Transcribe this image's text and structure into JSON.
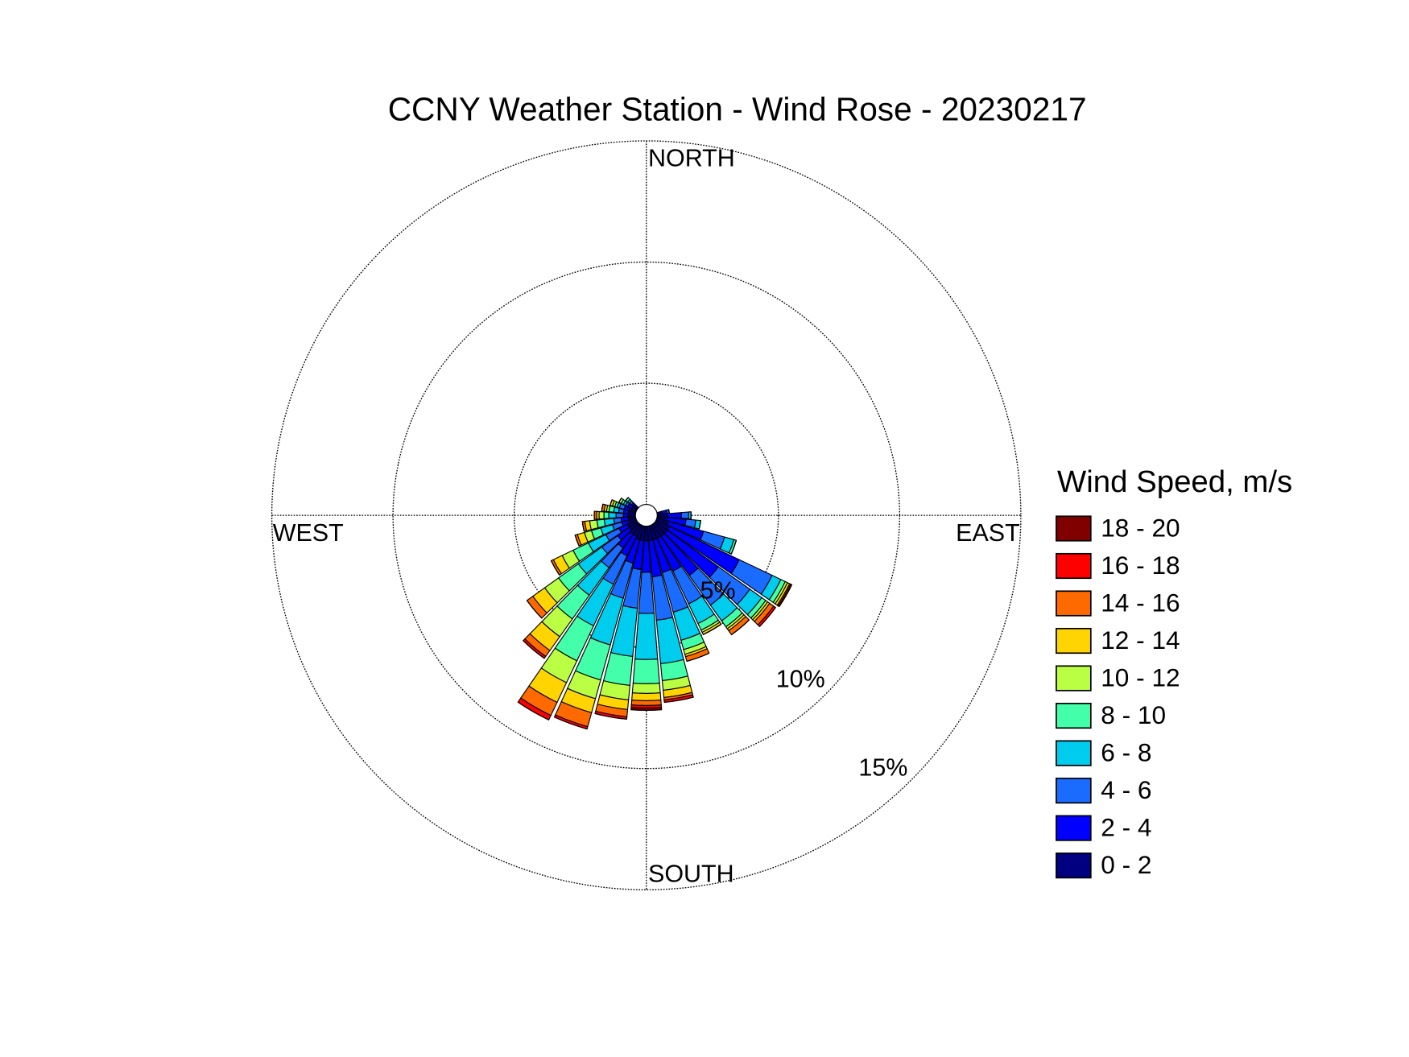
{
  "chart_data": {
    "type": "windrose",
    "title": "CCNY Weather Station - Wind Rose - 20230217",
    "direction_labels": {
      "north": "NORTH",
      "east": "EAST",
      "south": "SOUTH",
      "west": "WEST"
    },
    "legend_title": "Wind Speed, m/s",
    "x": [
      80,
      90,
      100,
      110,
      120,
      130,
      140,
      150,
      160,
      170,
      180,
      190,
      200,
      210,
      220,
      230,
      240,
      250,
      260,
      270,
      280,
      290,
      300,
      310
    ],
    "rlim": [
      0,
      15
    ],
    "rticks": [
      {
        "value": 5,
        "label": "5%"
      },
      {
        "value": 10,
        "label": "10%"
      },
      {
        "value": 15,
        "label": "15%"
      }
    ],
    "grid": true,
    "series": [
      {
        "name": "0 - 2",
        "color": "#000080",
        "values": [
          0.2,
          0.4,
          0.4,
          0.5,
          0.6,
          0.6,
          0.6,
          0.6,
          0.6,
          0.6,
          0.6,
          0.6,
          0.6,
          0.5,
          0.5,
          0.4,
          0.4,
          0.3,
          0.3,
          0.3,
          0.3,
          0.3,
          0.2,
          0.2
        ]
      },
      {
        "name": "2 - 4",
        "color": "#0000ff",
        "values": [
          0.2,
          0.6,
          0.8,
          1.5,
          3.2,
          2.6,
          2.0,
          1.5,
          1.4,
          1.5,
          1.3,
          1.2,
          1.0,
          0.9,
          0.7,
          0.6,
          0.4,
          0.3,
          0.3,
          0.2,
          0.2,
          0.2,
          0.2,
          0.1
        ]
      },
      {
        "name": "4 - 6",
        "color": "#1a6bff",
        "values": [
          0.1,
          0.3,
          0.4,
          0.9,
          1.5,
          1.6,
          1.5,
          1.5,
          1.7,
          1.8,
          1.7,
          1.6,
          1.5,
          1.3,
          1.0,
          0.8,
          0.6,
          0.4,
          0.3,
          0.3,
          0.2,
          0.2,
          0.1,
          0.1
        ]
      },
      {
        "name": "6 - 8",
        "color": "#00ccee",
        "values": [
          0,
          0.1,
          0.2,
          0.4,
          0.4,
          0.6,
          0.8,
          0.9,
          1.2,
          1.8,
          1.9,
          2.0,
          2.0,
          1.9,
          1.4,
          1.2,
          0.8,
          0.5,
          0.4,
          0.3,
          0.2,
          0.1,
          0.1,
          0.1
        ]
      },
      {
        "name": "8 - 10",
        "color": "#44ffaa",
        "values": [
          0,
          0,
          0,
          0.1,
          0.2,
          0.2,
          0.3,
          0.3,
          0.4,
          0.7,
          1.0,
          1.2,
          1.5,
          1.6,
          1.2,
          1.0,
          0.7,
          0.4,
          0.3,
          0.2,
          0.2,
          0.1,
          0.1,
          0.1
        ]
      },
      {
        "name": "10 - 12",
        "color": "#bbff44",
        "values": [
          0,
          0,
          0,
          0,
          0.1,
          0.1,
          0.1,
          0.1,
          0.2,
          0.4,
          0.4,
          0.6,
          0.8,
          1.0,
          0.9,
          0.7,
          0.5,
          0.3,
          0.3,
          0.2,
          0.1,
          0.1,
          0.1,
          0
        ]
      },
      {
        "name": "12 - 14",
        "color": "#ffd400",
        "values": [
          0,
          0,
          0,
          0,
          0.1,
          0.1,
          0.1,
          0.1,
          0.1,
          0.3,
          0.3,
          0.4,
          0.6,
          0.9,
          0.7,
          0.6,
          0.4,
          0.3,
          0.2,
          0.1,
          0.1,
          0.1,
          0,
          0
        ]
      },
      {
        "name": "14 - 16",
        "color": "#ff6a00",
        "values": [
          0,
          0,
          0,
          0,
          0.05,
          0.2,
          0.2,
          0,
          0.2,
          0.1,
          0.2,
          0.3,
          0.6,
          0.6,
          0.3,
          0.3,
          0.1,
          0.1,
          0.1,
          0.1,
          0.1,
          0,
          0,
          0
        ]
      },
      {
        "name": "16 - 18",
        "color": "#ff0000",
        "values": [
          0,
          0,
          0,
          0,
          0.05,
          0.1,
          0,
          0,
          0,
          0.1,
          0.1,
          0.1,
          0.1,
          0.2,
          0.1,
          0,
          0,
          0,
          0,
          0,
          0,
          0,
          0,
          0
        ]
      },
      {
        "name": "18 - 20",
        "color": "#800000",
        "values": [
          0,
          0,
          0,
          0,
          0,
          0,
          0,
          0,
          0,
          0,
          0.1,
          0,
          0,
          0,
          0,
          0,
          0,
          0,
          0,
          0,
          0,
          0,
          0,
          0
        ]
      }
    ]
  }
}
